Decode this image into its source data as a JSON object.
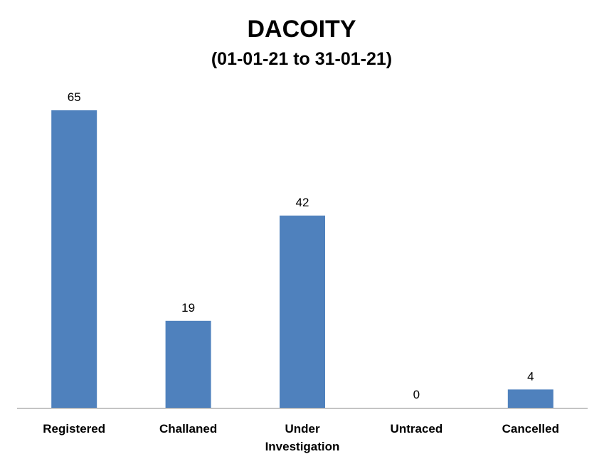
{
  "chart_data": {
    "type": "bar",
    "title": "DACOITY",
    "subtitle": "(01-01-21 to 31-01-21)",
    "categories": [
      "Registered",
      "Challaned",
      "Under\nInvestigation",
      "Untraced",
      "Cancelled"
    ],
    "values": [
      65,
      19,
      42,
      0,
      4
    ],
    "data_labels": [
      "65",
      "19",
      "42",
      "0",
      "4"
    ],
    "ylim": [
      0,
      70
    ],
    "grid": false,
    "legend": "none",
    "colors": {
      "bar": "#4F81BD",
      "axis": "#868686",
      "text": "#000000"
    }
  }
}
